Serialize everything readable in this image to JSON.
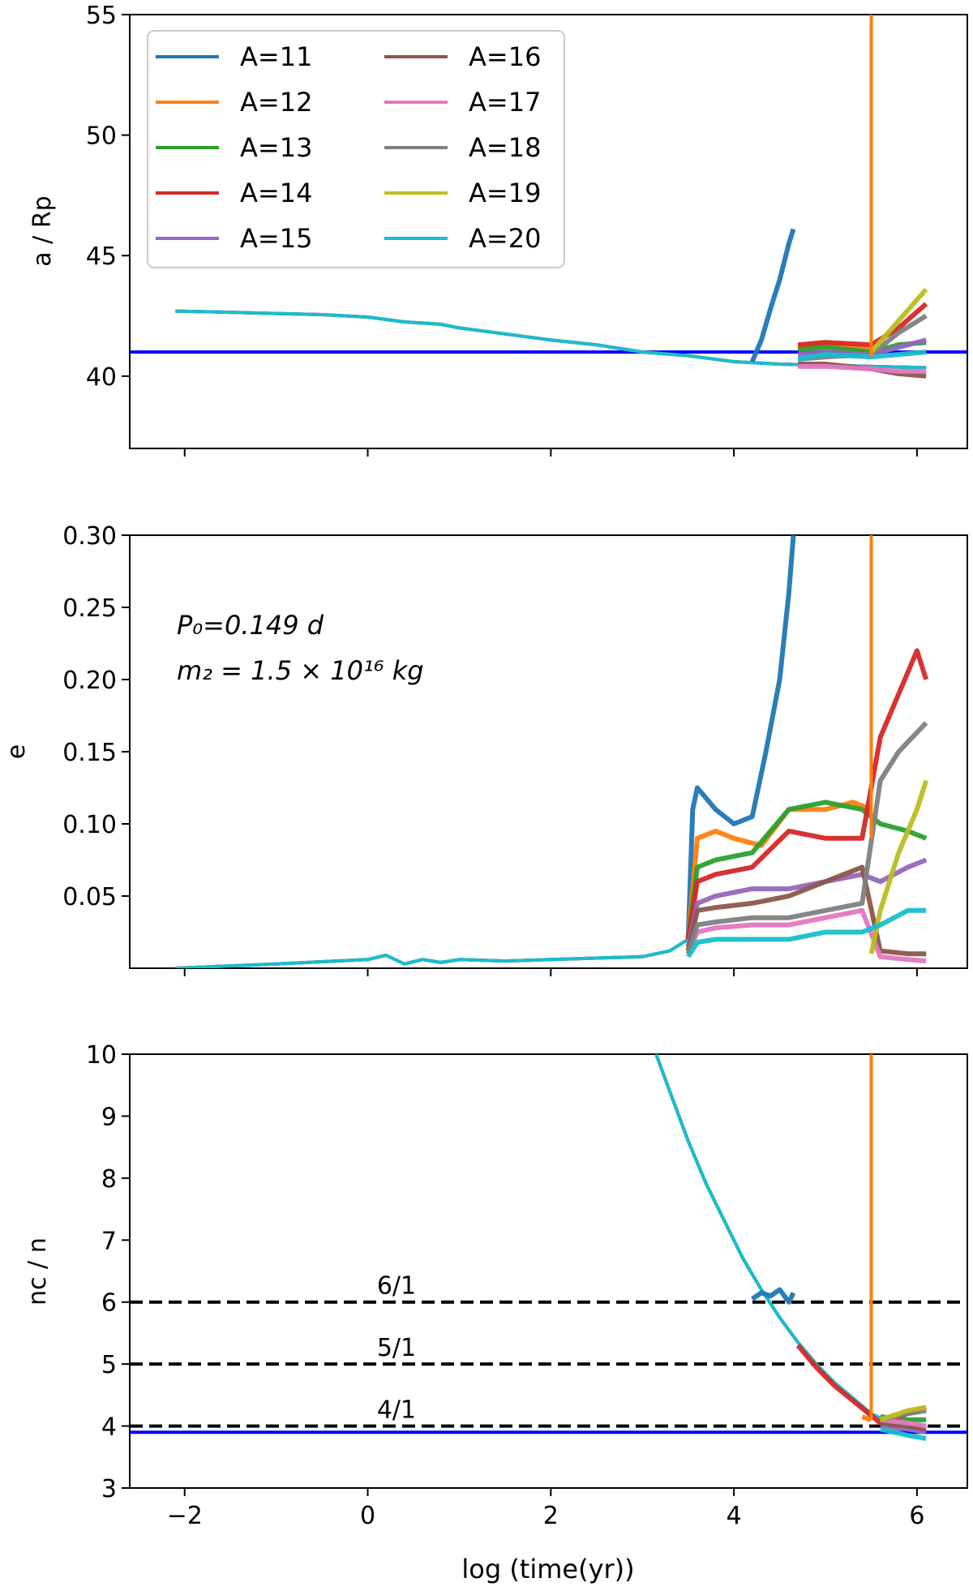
{
  "figure": {
    "xlabel": "log (time(yr))",
    "xlim": [
      -2.6,
      6.55
    ],
    "xticks": [
      -2,
      0,
      2,
      4,
      6
    ],
    "xtick_labels": [
      "−2",
      "0",
      "2",
      "4",
      "6"
    ]
  },
  "series_colors": {
    "A=11": "#1f77b4",
    "A=12": "#ff7f0e",
    "A=13": "#2ca02c",
    "A=14": "#d62728",
    "A=15": "#9467bd",
    "A=16": "#8c564b",
    "A=17": "#e377c2",
    "A=18": "#7f7f7f",
    "A=19": "#bcbd22",
    "A=20": "#17becf"
  },
  "legend": {
    "placement": "upper-left",
    "entries": [
      "A=11",
      "A=12",
      "A=13",
      "A=14",
      "A=15",
      "A=16",
      "A=17",
      "A=18",
      "A=19",
      "A=20"
    ]
  },
  "chart_data": [
    {
      "type": "line",
      "panel": "top",
      "title": "",
      "xlabel": "",
      "ylabel": "a / Rp",
      "ylim": [
        37,
        55
      ],
      "yticks": [
        40,
        45,
        50,
        55
      ],
      "ytick_labels": [
        "40",
        "45",
        "50",
        "55"
      ],
      "grid": false,
      "hlines": [
        {
          "y": 41.0,
          "color": "#0000ff",
          "style": "solid"
        }
      ],
      "vlines": [
        {
          "x": 5.5,
          "color": "#ff7f0e",
          "y_from": 40.8,
          "y_to": 55
        }
      ],
      "common_track": {
        "x": [
          -2.1,
          -1.5,
          -1.0,
          -0.5,
          0.0,
          0.2,
          0.4,
          0.6,
          0.8,
          1.0,
          1.5,
          2.0,
          2.5,
          3.0,
          3.5,
          4.0,
          4.5,
          5.0,
          5.5,
          6.1
        ],
        "y": [
          42.7,
          42.65,
          42.6,
          42.55,
          42.45,
          42.35,
          42.25,
          42.2,
          42.15,
          42.0,
          41.75,
          41.5,
          41.3,
          41.0,
          40.85,
          40.6,
          40.5,
          40.45,
          40.4,
          40.35
        ]
      },
      "series": [
        {
          "name": "A=11",
          "x": [
            4.2,
            4.3,
            4.4,
            4.5,
            4.6,
            4.65
          ],
          "y": [
            40.6,
            41.5,
            42.8,
            44.0,
            45.5,
            46.1
          ]
        },
        {
          "name": "A=12",
          "x": [
            4.7,
            5.0,
            5.3,
            5.5
          ],
          "y": [
            41.2,
            41.3,
            41.2,
            41.1
          ]
        },
        {
          "name": "A=13",
          "x": [
            4.7,
            5.0,
            5.5,
            5.8,
            6.1
          ],
          "y": [
            41.1,
            41.2,
            41.0,
            41.3,
            41.4
          ]
        },
        {
          "name": "A=14",
          "x": [
            4.7,
            5.0,
            5.5,
            5.8,
            6.1
          ],
          "y": [
            41.3,
            41.4,
            41.3,
            42.0,
            43.0
          ]
        },
        {
          "name": "A=15",
          "x": [
            4.7,
            5.0,
            5.5,
            5.8,
            6.1
          ],
          "y": [
            40.9,
            41.0,
            40.9,
            41.2,
            41.5
          ]
        },
        {
          "name": "A=16",
          "x": [
            4.7,
            5.0,
            5.5,
            5.8,
            6.1
          ],
          "y": [
            40.5,
            40.5,
            40.3,
            40.1,
            40.0
          ]
        },
        {
          "name": "A=17",
          "x": [
            4.7,
            5.0,
            5.5,
            5.8,
            6.1
          ],
          "y": [
            40.4,
            40.4,
            40.3,
            40.2,
            40.2
          ]
        },
        {
          "name": "A=18",
          "x": [
            4.7,
            5.0,
            5.5,
            5.8,
            6.1
          ],
          "y": [
            40.7,
            40.8,
            40.9,
            41.8,
            42.5
          ]
        },
        {
          "name": "A=19",
          "x": [
            5.5,
            5.8,
            6.1
          ],
          "y": [
            41.0,
            42.3,
            43.6
          ]
        },
        {
          "name": "A=20",
          "x": [
            4.7,
            5.0,
            5.5,
            5.8,
            6.1
          ],
          "y": [
            40.7,
            40.9,
            40.8,
            40.9,
            41.0
          ]
        }
      ],
      "annotations": []
    },
    {
      "type": "line",
      "panel": "middle",
      "title": "",
      "xlabel": "",
      "ylabel": "e",
      "ylim": [
        0,
        0.3
      ],
      "yticks": [
        0.05,
        0.1,
        0.15,
        0.2,
        0.25,
        0.3
      ],
      "ytick_labels": [
        "0.05",
        "0.10",
        "0.15",
        "0.20",
        "0.25",
        "0.30"
      ],
      "grid": false,
      "hlines": [],
      "vlines": [
        {
          "x": 5.5,
          "color": "#ff7f0e",
          "y_from": 0.09,
          "y_to": 0.3
        }
      ],
      "common_track": {
        "x": [
          -2.1,
          -1.0,
          0.0,
          0.2,
          0.4,
          0.6,
          0.8,
          1.0,
          1.5,
          2.0,
          2.5,
          3.0,
          3.3,
          3.5
        ],
        "y": [
          0.0,
          0.003,
          0.006,
          0.009,
          0.003,
          0.006,
          0.004,
          0.006,
          0.005,
          0.006,
          0.007,
          0.008,
          0.012,
          0.02
        ]
      },
      "series": [
        {
          "name": "A=11",
          "x": [
            3.5,
            3.55,
            3.6,
            3.8,
            4.0,
            4.2,
            4.35,
            4.5,
            4.6,
            4.65
          ],
          "y": [
            0.02,
            0.11,
            0.125,
            0.11,
            0.1,
            0.105,
            0.15,
            0.2,
            0.26,
            0.3
          ]
        },
        {
          "name": "A=12",
          "x": [
            3.5,
            3.6,
            3.8,
            4.0,
            4.3,
            4.6,
            5.0,
            5.3,
            5.5
          ],
          "y": [
            0.02,
            0.09,
            0.095,
            0.09,
            0.085,
            0.11,
            0.11,
            0.115,
            0.11
          ]
        },
        {
          "name": "A=13",
          "x": [
            3.5,
            3.6,
            3.8,
            4.2,
            4.6,
            5.0,
            5.4,
            5.6,
            5.9,
            6.1
          ],
          "y": [
            0.02,
            0.07,
            0.075,
            0.08,
            0.11,
            0.115,
            0.11,
            0.1,
            0.095,
            0.09
          ]
        },
        {
          "name": "A=14",
          "x": [
            3.5,
            3.6,
            3.8,
            4.2,
            4.6,
            5.0,
            5.4,
            5.6,
            5.8,
            6.0,
            6.1
          ],
          "y": [
            0.02,
            0.06,
            0.065,
            0.07,
            0.095,
            0.09,
            0.09,
            0.16,
            0.19,
            0.22,
            0.2
          ]
        },
        {
          "name": "A=15",
          "x": [
            3.5,
            3.6,
            3.8,
            4.2,
            4.6,
            5.0,
            5.4,
            5.6,
            5.9,
            6.1
          ],
          "y": [
            0.015,
            0.045,
            0.05,
            0.055,
            0.055,
            0.06,
            0.065,
            0.06,
            0.07,
            0.075
          ]
        },
        {
          "name": "A=16",
          "x": [
            3.5,
            3.6,
            3.8,
            4.2,
            4.6,
            5.0,
            5.4,
            5.6,
            5.9,
            6.1
          ],
          "y": [
            0.012,
            0.04,
            0.042,
            0.045,
            0.05,
            0.06,
            0.07,
            0.012,
            0.01,
            0.01
          ]
        },
        {
          "name": "A=17",
          "x": [
            3.5,
            3.6,
            3.8,
            4.2,
            4.6,
            5.0,
            5.4,
            5.6,
            5.9,
            6.1
          ],
          "y": [
            0.01,
            0.025,
            0.028,
            0.03,
            0.03,
            0.035,
            0.04,
            0.008,
            0.006,
            0.005
          ]
        },
        {
          "name": "A=18",
          "x": [
            3.5,
            3.6,
            3.8,
            4.2,
            4.6,
            5.0,
            5.4,
            5.6,
            5.8,
            6.1
          ],
          "y": [
            0.01,
            0.03,
            0.032,
            0.035,
            0.035,
            0.04,
            0.045,
            0.13,
            0.15,
            0.17
          ]
        },
        {
          "name": "A=19",
          "x": [
            5.5,
            5.6,
            5.8,
            6.0,
            6.1
          ],
          "y": [
            0.01,
            0.04,
            0.08,
            0.11,
            0.13
          ]
        },
        {
          "name": "A=20",
          "x": [
            3.5,
            3.6,
            3.8,
            4.2,
            4.6,
            5.0,
            5.4,
            5.6,
            5.9,
            6.1
          ],
          "y": [
            0.008,
            0.018,
            0.02,
            0.02,
            0.02,
            0.025,
            0.025,
            0.03,
            0.04,
            0.04
          ]
        }
      ],
      "annotations": [
        {
          "text": "P₀=0.149 d"
        },
        {
          "text": "m₂ = 1.5 × 10¹⁶ kg"
        }
      ]
    },
    {
      "type": "line",
      "panel": "bottom",
      "title": "",
      "xlabel": "log (time(yr))",
      "ylabel": "nᴄ / n",
      "ylim": [
        3,
        10
      ],
      "yticks": [
        3,
        4,
        5,
        6,
        7,
        8,
        9,
        10
      ],
      "ytick_labels": [
        "3",
        "4",
        "5",
        "6",
        "7",
        "8",
        "9",
        "10"
      ],
      "grid": false,
      "hlines": [
        {
          "y": 6,
          "color": "#000000",
          "style": "dashed",
          "label": "6/1"
        },
        {
          "y": 5,
          "color": "#000000",
          "style": "dashed",
          "label": "5/1"
        },
        {
          "y": 4,
          "color": "#000000",
          "style": "dashed",
          "label": "4/1"
        },
        {
          "y": 3.9,
          "color": "#0000ff",
          "style": "solid"
        }
      ],
      "vlines": [
        {
          "x": 5.5,
          "color": "#ff7f0e",
          "y_from": 4.1,
          "y_to": 10
        }
      ],
      "common_track": {
        "x": [
          3.15,
          3.3,
          3.5,
          3.7,
          3.9,
          4.1,
          4.3,
          4.5,
          4.7,
          4.9,
          5.1,
          5.3,
          5.5,
          5.7,
          5.9,
          6.1
        ],
        "y": [
          10.0,
          9.4,
          8.6,
          7.9,
          7.3,
          6.7,
          6.2,
          5.75,
          5.35,
          5.0,
          4.7,
          4.45,
          4.2,
          4.05,
          3.95,
          3.9
        ]
      },
      "series": [
        {
          "name": "A=11",
          "x": [
            4.2,
            4.3,
            4.4,
            4.5,
            4.6,
            4.65
          ],
          "y": [
            6.05,
            6.15,
            6.1,
            6.2,
            6.0,
            6.15
          ]
        },
        {
          "name": "A=12",
          "x": [
            5.4,
            5.5
          ],
          "y": [
            4.15,
            4.1
          ]
        },
        {
          "name": "A=13",
          "x": [
            5.6,
            5.9,
            6.1
          ],
          "y": [
            4.15,
            4.1,
            4.1
          ]
        },
        {
          "name": "A=14",
          "x": [
            4.7,
            4.9,
            5.1,
            5.6,
            5.9,
            6.1
          ],
          "y": [
            5.3,
            4.95,
            4.65,
            4.05,
            4.2,
            4.3
          ]
        },
        {
          "name": "A=15",
          "x": [
            5.6,
            5.9,
            6.1
          ],
          "y": [
            4.0,
            3.95,
            3.9
          ]
        },
        {
          "name": "A=16",
          "x": [
            5.6,
            5.9,
            6.1
          ],
          "y": [
            4.05,
            4.0,
            3.95
          ]
        },
        {
          "name": "A=17",
          "x": [
            5.6,
            5.9,
            6.1
          ],
          "y": [
            4.1,
            4.05,
            4.0
          ]
        },
        {
          "name": "A=18",
          "x": [
            5.6,
            5.9,
            6.1
          ],
          "y": [
            4.1,
            4.2,
            4.25
          ]
        },
        {
          "name": "A=19",
          "x": [
            5.6,
            5.9,
            6.1
          ],
          "y": [
            4.1,
            4.25,
            4.3
          ]
        },
        {
          "name": "A=20",
          "x": [
            5.6,
            5.9,
            6.1
          ],
          "y": [
            3.95,
            3.85,
            3.8
          ]
        }
      ],
      "annotations": []
    }
  ]
}
